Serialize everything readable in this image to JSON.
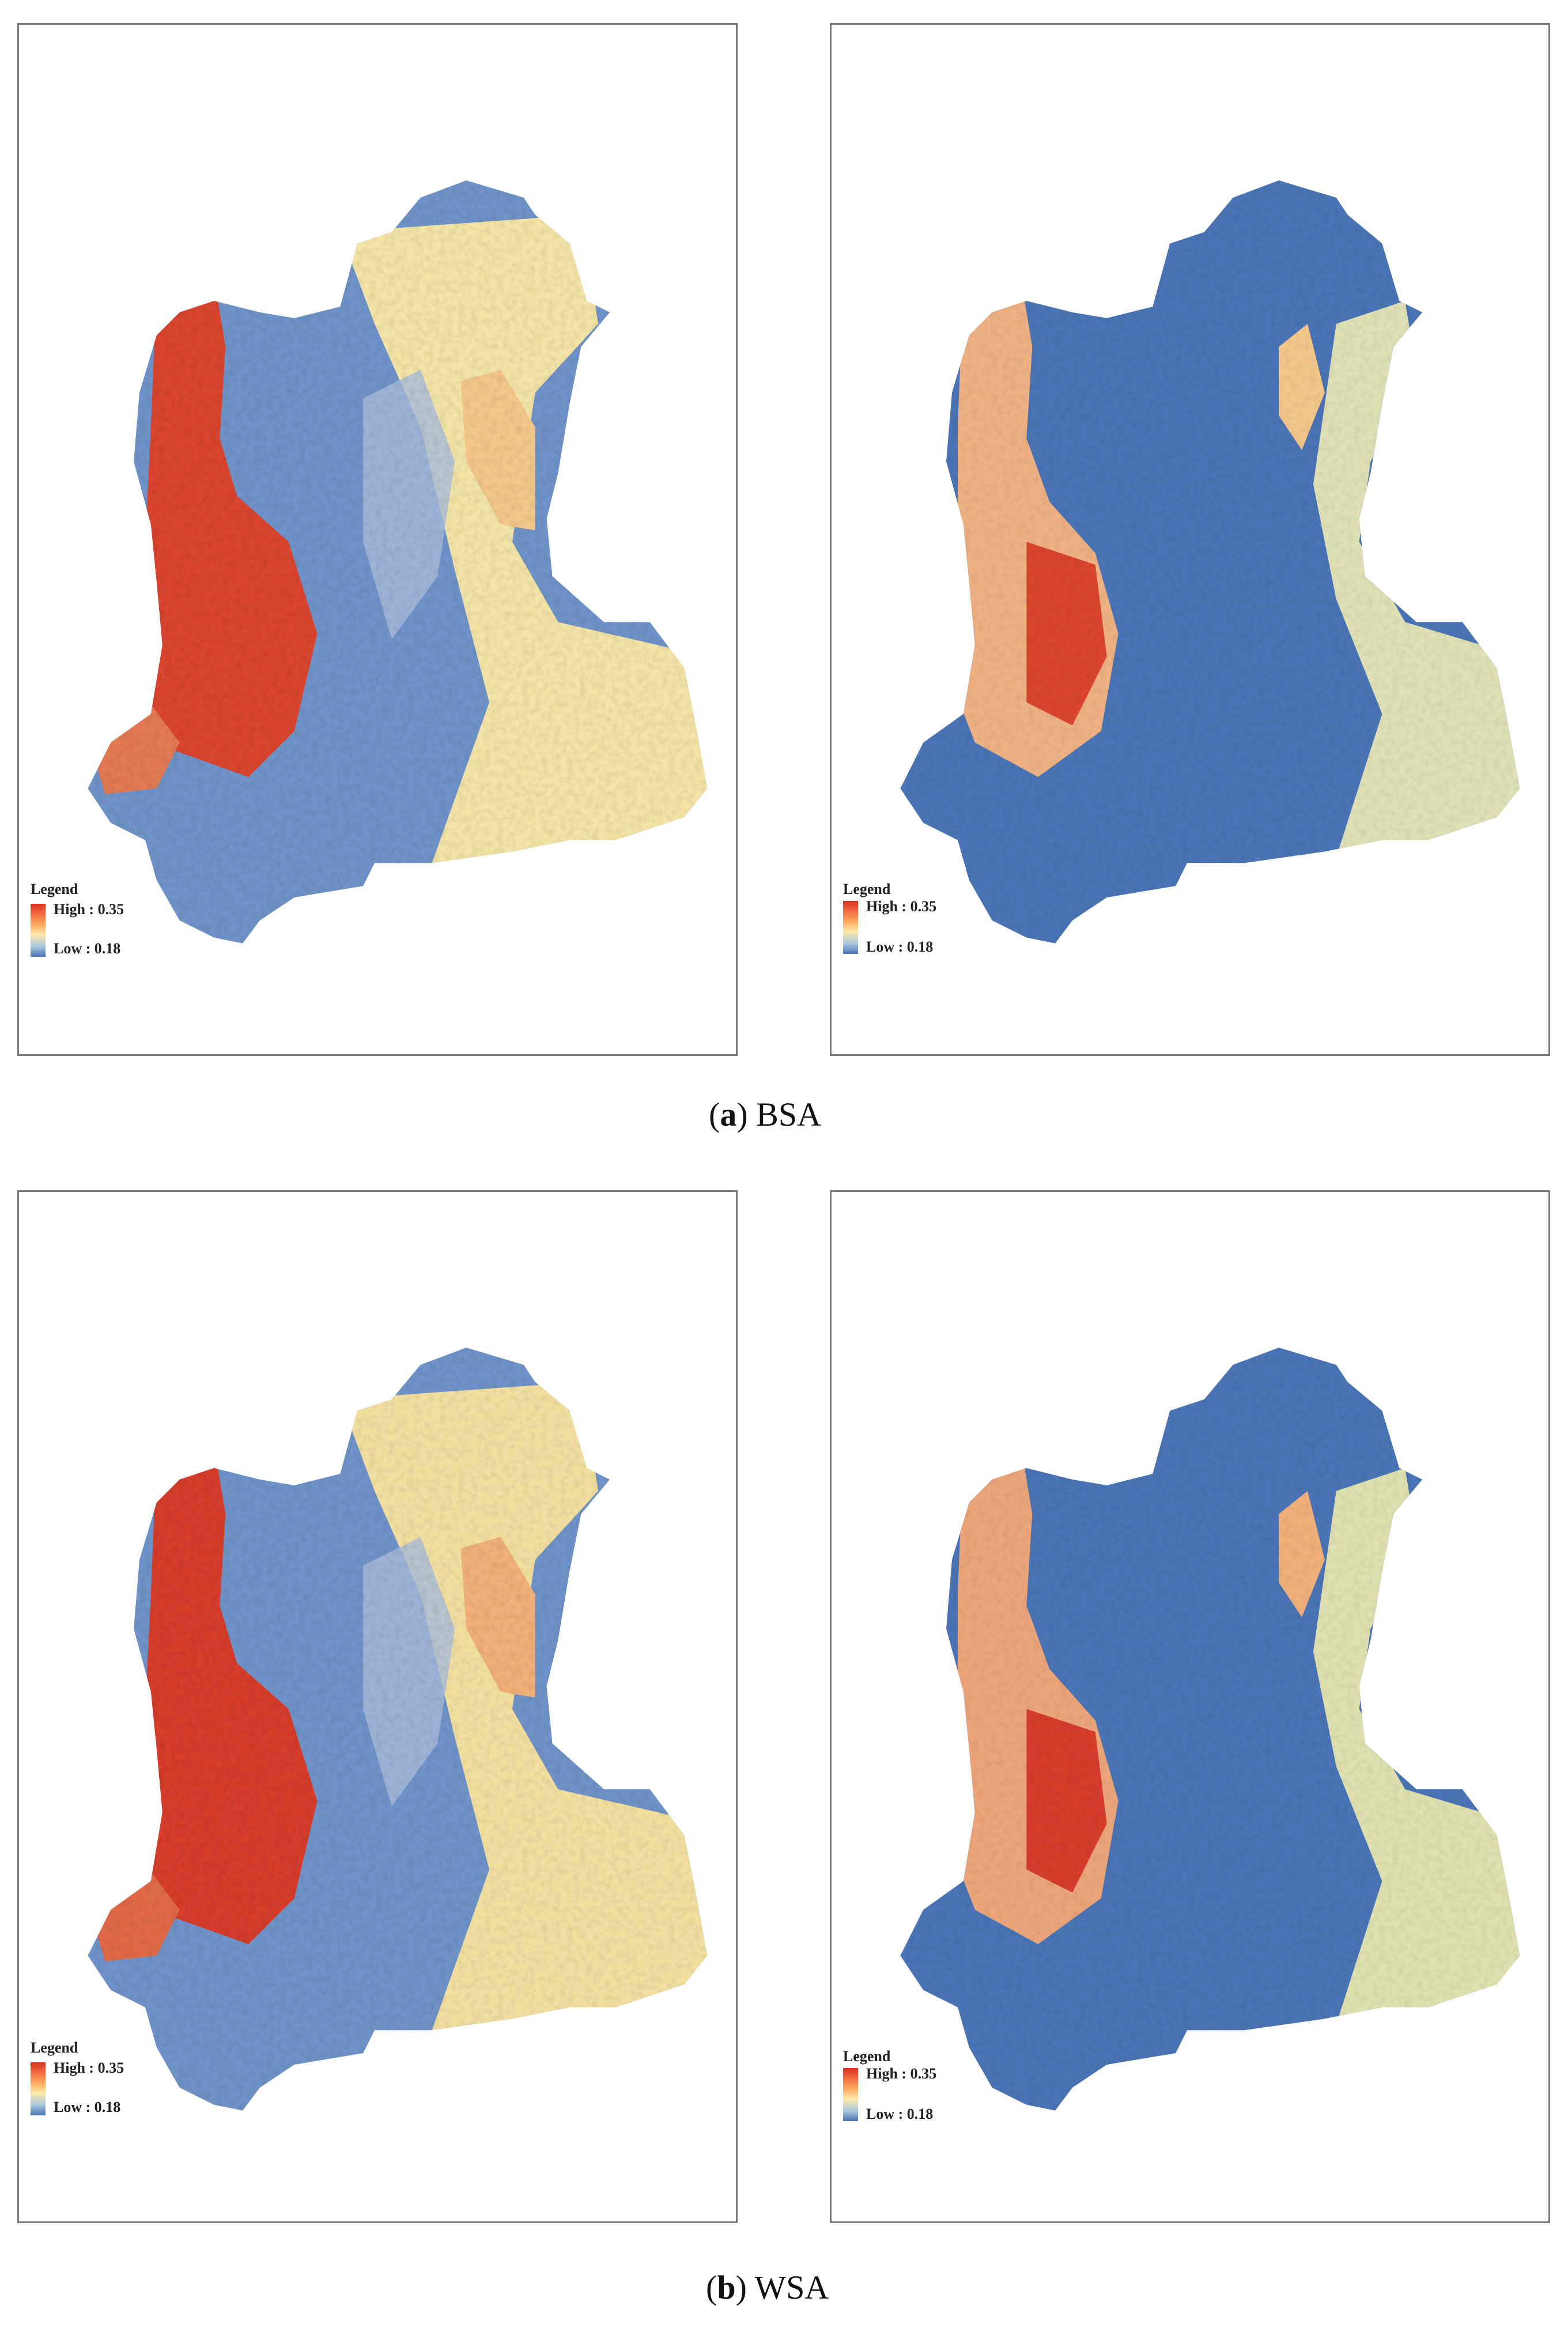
{
  "legend": {
    "title": "Legend",
    "high_label": "High : 0.35",
    "low_label": "Low : 0.18",
    "high_value": 0.35,
    "low_value": 0.18
  },
  "captions": {
    "a": {
      "letter": "a",
      "text": " BSA"
    },
    "b": {
      "letter": "b",
      "text": " WSA"
    }
  },
  "colors": {
    "high": "#d7301f",
    "mid": "#fee9a8",
    "low": "#4a74b5",
    "panel_border": "#7a7a7a"
  }
}
